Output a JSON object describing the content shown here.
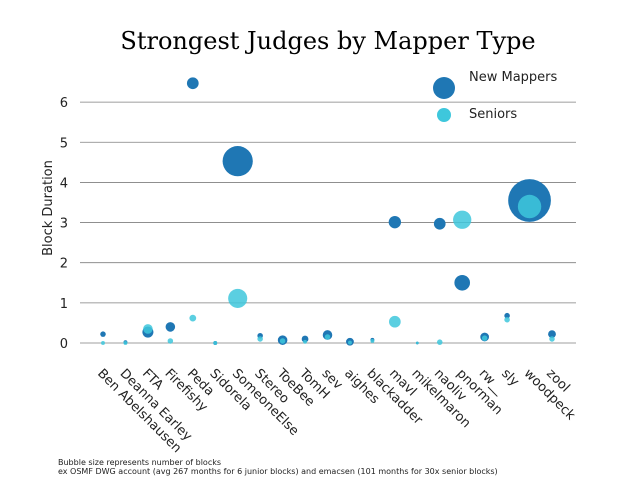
{
  "chart_data": {
    "type": "scatter",
    "title": "Strongest Judges by Mapper Type",
    "xlabel": "",
    "ylabel": "Block Duration",
    "ylim": [
      -0.1,
      7.0
    ],
    "yticks": [
      0,
      1,
      2,
      3,
      4,
      5,
      6
    ],
    "grid": true,
    "legend_position": "top-right",
    "categories": [
      "Ben Abelshausen",
      "Deanna Earley",
      "FTA",
      "Firefishy",
      "Peda",
      "Sidorela",
      "SomeoneElse",
      "Stereo",
      "ToeBee",
      "TomH",
      "sev",
      "aighes",
      "blackadder",
      "mavl",
      "mikelmaron",
      "naoliv",
      "pnorman",
      "rw__",
      "sly",
      "woodpeck",
      "zool"
    ],
    "series": [
      {
        "name": "New Mappers",
        "color": "#1f77b4",
        "values": [
          0.22,
          0.02,
          0.27,
          0.4,
          6.47,
          0.0,
          4.53,
          0.18,
          0.07,
          0.1,
          0.2,
          0.03,
          0.08,
          3.01,
          0.0,
          2.97,
          1.5,
          0.15,
          0.68,
          3.55,
          0.22
        ],
        "sizes": [
          2,
          1,
          8,
          6,
          9,
          1,
          60,
          2,
          6,
          3,
          6,
          4,
          1,
          10,
          0.5,
          9,
          16,
          5,
          2,
          120,
          4
        ]
      },
      {
        "name": "Seniors",
        "color": "#3ec7dc",
        "values": [
          0.0,
          0.0,
          0.35,
          0.05,
          0.62,
          0.0,
          1.11,
          0.1,
          0.05,
          0.03,
          0.15,
          0.01,
          0.05,
          0.53,
          0.0,
          0.02,
          3.07,
          0.12,
          0.58,
          3.4,
          0.1
        ],
        "sizes": [
          1,
          1,
          6,
          2,
          3,
          1,
          24,
          2,
          2,
          1,
          2,
          1,
          1,
          9,
          0.5,
          2,
          22,
          2,
          2,
          36,
          2
        ]
      }
    ],
    "footnotes": [
      "Bubble size represents number of blocks",
      "ex OSMF DWG account (avg 267 months for 6 junior blocks) and emacsen (101 months for 30x senior blocks)"
    ]
  }
}
